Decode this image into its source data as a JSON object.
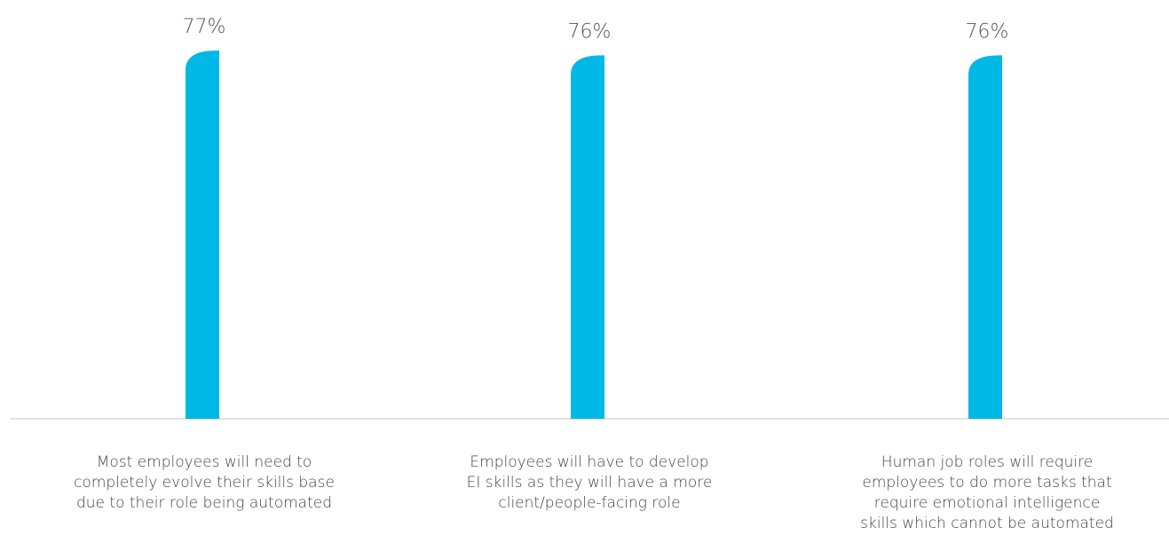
{
  "chart_data": {
    "type": "bar",
    "categories": [
      "Most employees will need to completely evolve their skills base due to their role being automated",
      "Employees will have to develop EI skills as they will have a more client/people-facing role",
      "Human job roles will require employees to do more tasks that require emotional intelligence skills which cannot be automated"
    ],
    "category_lines": [
      [
        "Most employees will need to",
        "completely evolve their skills base",
        "due to their role being automated"
      ],
      [
        "Employees will have to develop",
        "EI skills as they will have a more",
        "client/people-facing role"
      ],
      [
        "Human job roles will require",
        "employees to do more tasks that",
        "require emotional intelligence",
        "skills which cannot be automated"
      ]
    ],
    "values": [
      77,
      76,
      76
    ],
    "value_labels": [
      "77%",
      "76%",
      "76%"
    ],
    "ylim": [
      0,
      77
    ],
    "grid": false,
    "colors": {
      "bar": "#00b8e6",
      "baseline": "#d9d9d9"
    }
  }
}
